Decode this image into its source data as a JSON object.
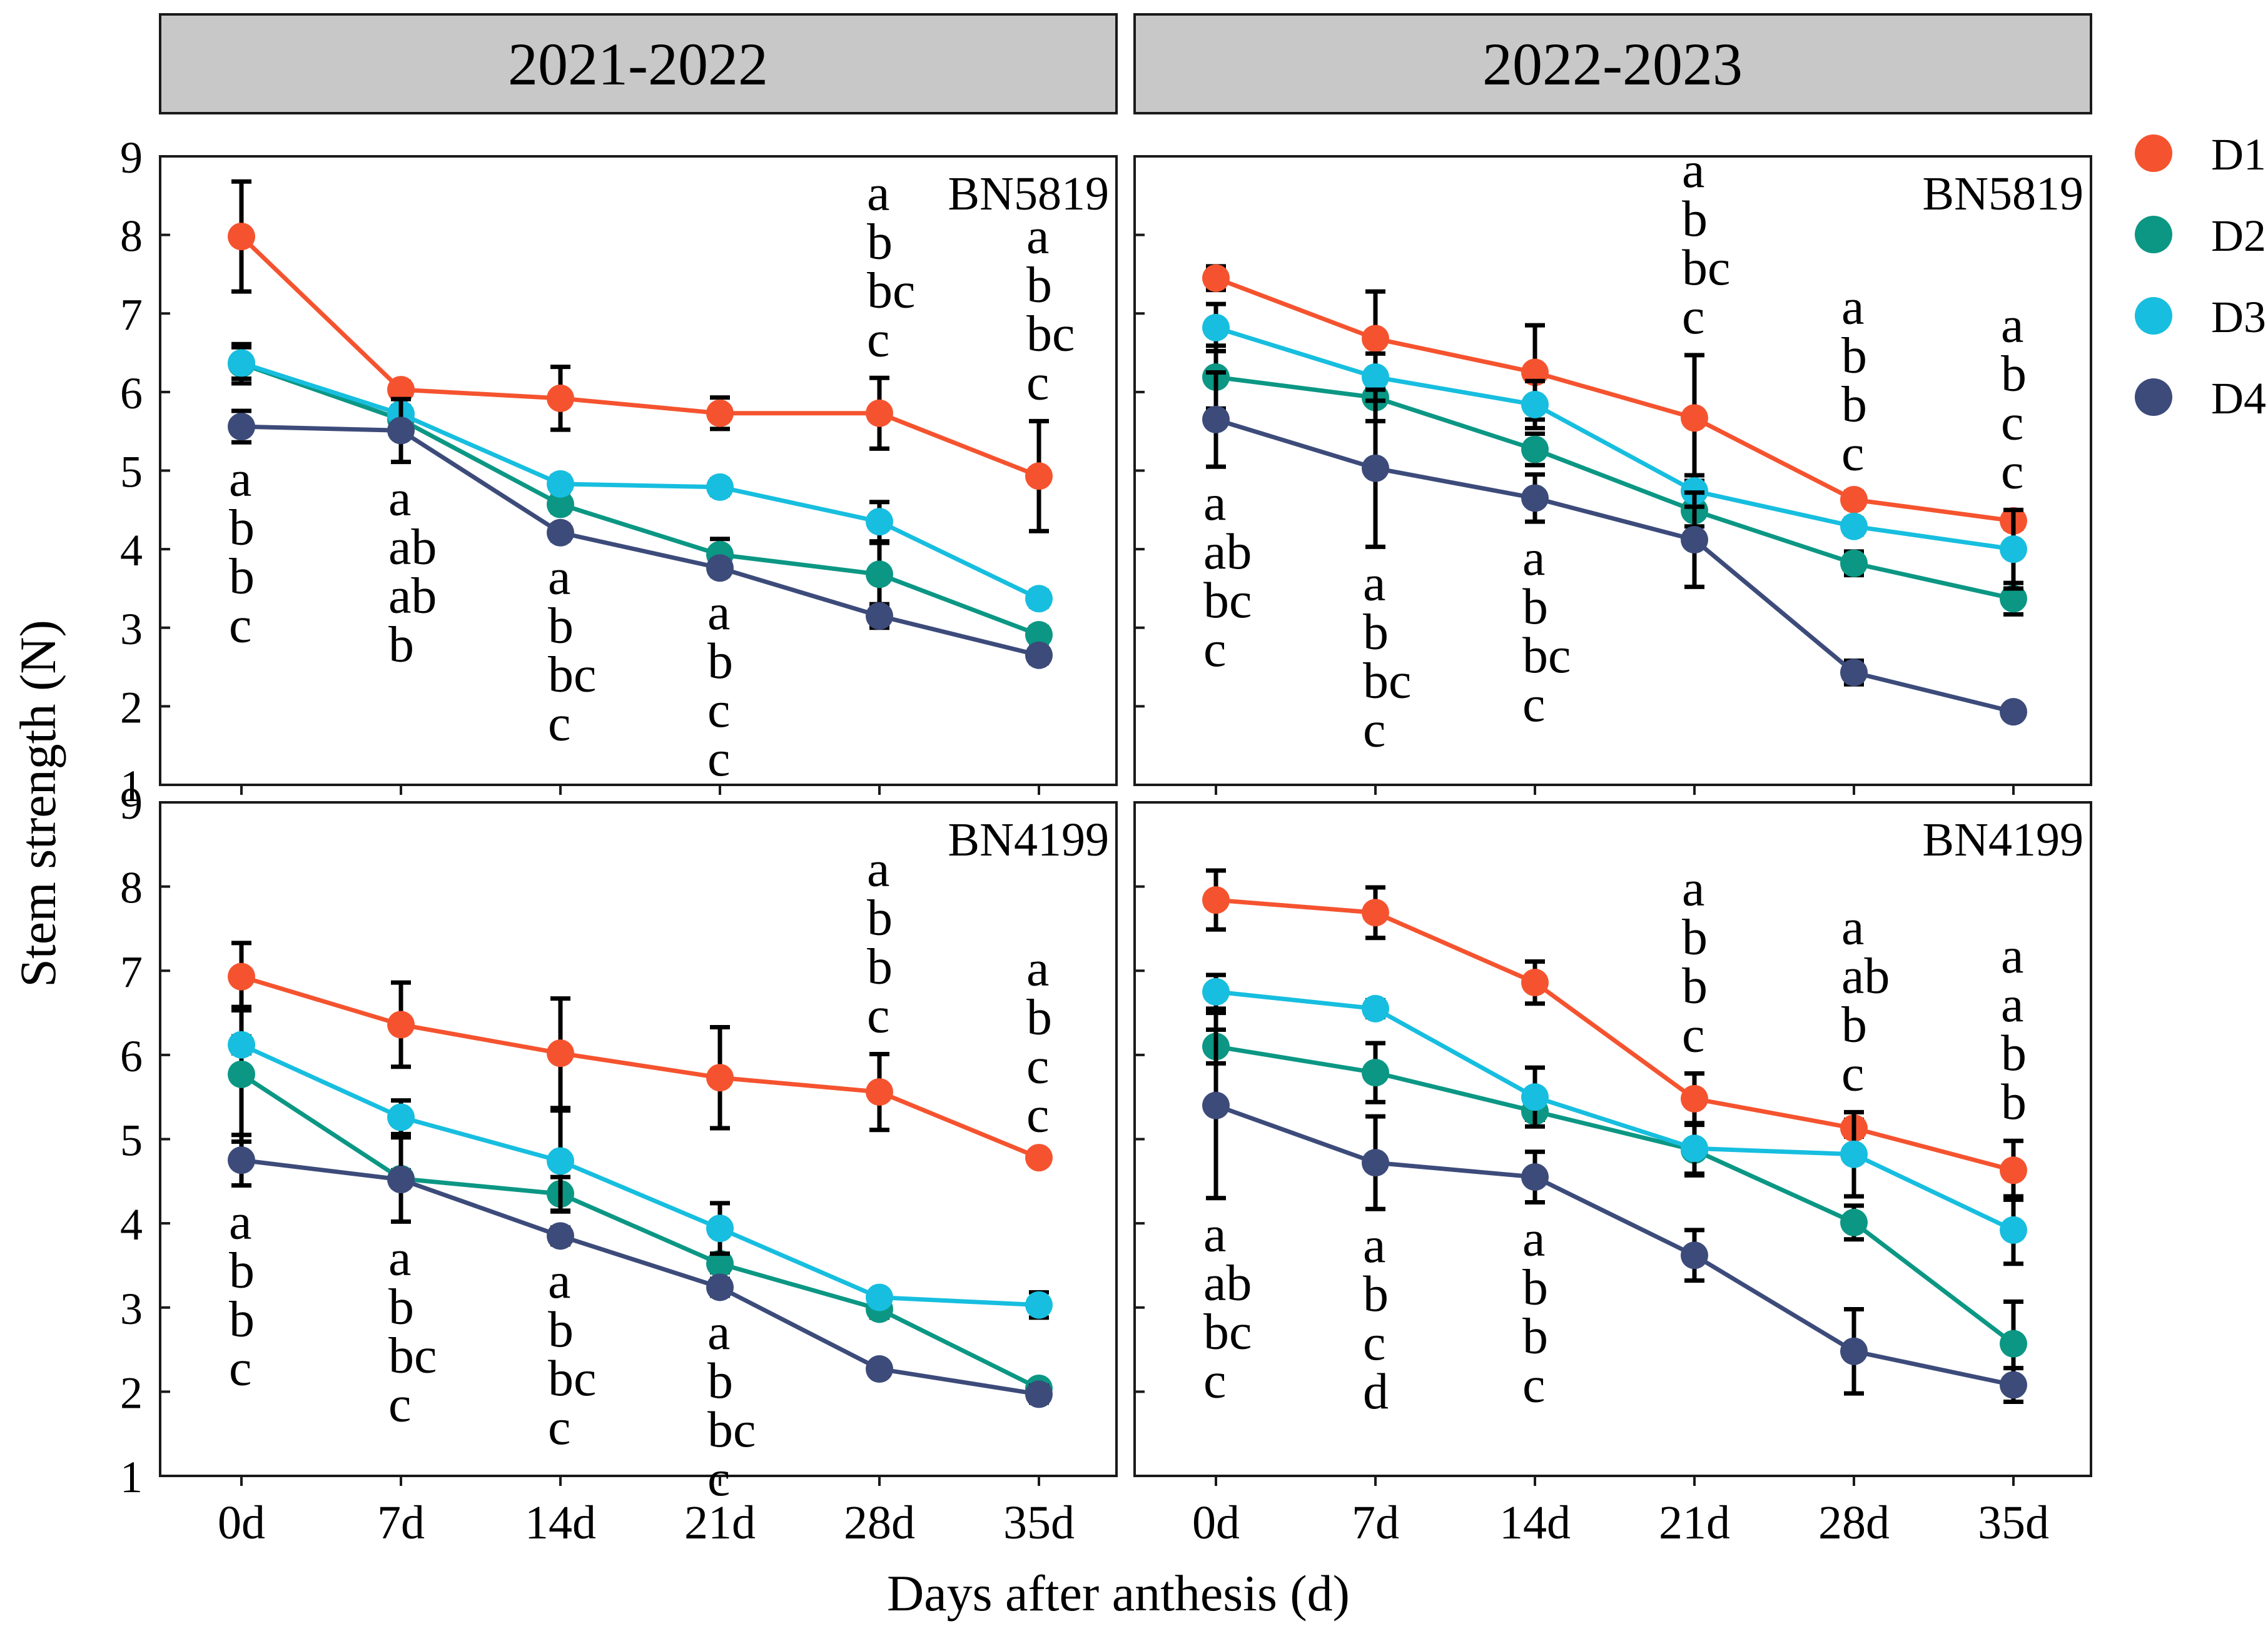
{
  "colors": {
    "D1": "#F5532F",
    "D2": "#0B9784",
    "D3": "#17BEDF",
    "D4": "#3C4B7A",
    "strip": "#C8C8C8",
    "frame": "#1a1a1a"
  },
  "legend": [
    {
      "key": "D1",
      "label": "D1"
    },
    {
      "key": "D2",
      "label": "D2"
    },
    {
      "key": "D3",
      "label": "D3"
    },
    {
      "key": "D4",
      "label": "D4"
    }
  ],
  "axes": {
    "xlabel": "Days after anthesis (d)",
    "ylabel": "Stem strength (N)",
    "yticks": [
      "1",
      "2",
      "3",
      "4",
      "5",
      "6",
      "7",
      "8",
      "9"
    ],
    "xticks": [
      "0d",
      "7d",
      "14d",
      "21d",
      "28d",
      "35d"
    ]
  },
  "chart_data": {
    "type": "line",
    "title": "",
    "xlabel": "Days after anthesis (d)",
    "ylabel": "Stem strength (N)",
    "ylim": [
      1,
      9
    ],
    "categories": [
      "0d",
      "7d",
      "14d",
      "21d",
      "28d",
      "35d"
    ],
    "seasons": [
      "2021-2022",
      "2022-2023"
    ],
    "panels": [
      {
        "season": "2021-2022",
        "variety": "BN5819",
        "series": [
          {
            "name": "D1",
            "values": [
              7.98,
              6.03,
              5.92,
              5.73,
              5.73,
              4.93
            ],
            "err": [
              0.7,
              0.1,
              0.4,
              0.2,
              0.45,
              0.7
            ]
          },
          {
            "name": "D2",
            "values": [
              6.36,
              5.65,
              4.57,
              3.93,
              3.68,
              2.91
            ],
            "err": [
              0.25,
              0.1,
              0.1,
              0.2,
              0.4,
              0.1
            ]
          },
          {
            "name": "D3",
            "values": [
              6.37,
              5.72,
              4.83,
              4.79,
              4.35,
              3.37
            ],
            "err": [
              0.2,
              0.1,
              0.1,
              0.1,
              0.25,
              0.1
            ]
          },
          {
            "name": "D4",
            "values": [
              5.56,
              5.51,
              4.21,
              3.76,
              3.15,
              2.65
            ],
            "err": [
              0.2,
              0.4,
              0.1,
              0.1,
              0.15,
              0.1
            ]
          }
        ],
        "letters": [
          {
            "x": 0,
            "pos": "below",
            "items": [
              "a",
              "b",
              "b",
              "c"
            ]
          },
          {
            "x": 1,
            "pos": "below",
            "items": [
              "a",
              "ab",
              "ab",
              "b"
            ]
          },
          {
            "x": 2,
            "pos": "below",
            "items": [
              "a",
              "b",
              "bc",
              "c"
            ]
          },
          {
            "x": 3,
            "pos": "below",
            "items": [
              "a",
              "b",
              "c",
              "c"
            ]
          },
          {
            "x": 4,
            "pos": "above",
            "items": [
              "a",
              "b",
              "bc",
              "c"
            ]
          },
          {
            "x": 5,
            "pos": "above",
            "items": [
              "a",
              "b",
              "bc",
              "c"
            ]
          }
        ]
      },
      {
        "season": "2022-2023",
        "variety": "BN5819",
        "series": [
          {
            "name": "D1",
            "values": [
              7.45,
              6.68,
              6.25,
              5.67,
              4.63,
              4.36
            ],
            "err": [
              0.15,
              0.6,
              0.6,
              0.8,
              0.1,
              0.1
            ]
          },
          {
            "name": "D2",
            "values": [
              6.19,
              5.93,
              5.27,
              4.49,
              3.82,
              3.37
            ],
            "err": [
              0.4,
              0.3,
              0.2,
              0.2,
              0.15,
              0.2
            ]
          },
          {
            "name": "D3",
            "values": [
              6.82,
              6.19,
              5.84,
              4.74,
              4.29,
              4.0
            ],
            "err": [
              0.3,
              0.3,
              0.3,
              0.2,
              0.1,
              0.5
            ]
          },
          {
            "name": "D4",
            "values": [
              5.65,
              5.03,
              4.65,
              4.12,
              2.43,
              1.93
            ],
            "err": [
              0.6,
              1.0,
              0.3,
              0.6,
              0.15,
              0.05
            ]
          }
        ],
        "letters": [
          {
            "x": 0,
            "pos": "below",
            "items": [
              "a",
              "ab",
              "bc",
              "c"
            ]
          },
          {
            "x": 1,
            "pos": "below",
            "items": [
              "a",
              "b",
              "bc",
              "c"
            ]
          },
          {
            "x": 2,
            "pos": "below",
            "items": [
              "a",
              "b",
              "bc",
              "c"
            ]
          },
          {
            "x": 3,
            "pos": "above",
            "items": [
              "a",
              "b",
              "bc",
              "c"
            ]
          },
          {
            "x": 4,
            "pos": "above",
            "items": [
              "a",
              "b",
              "b",
              "c"
            ]
          },
          {
            "x": 5,
            "pos": "above",
            "items": [
              "a",
              "b",
              "c",
              "c"
            ]
          }
        ]
      },
      {
        "season": "2021-2022",
        "variety": "BN4199",
        "series": [
          {
            "name": "D1",
            "values": [
              6.93,
              6.36,
              6.02,
              5.73,
              5.56,
              4.78
            ],
            "err": [
              0.4,
              0.5,
              0.65,
              0.6,
              0.45,
              0.05
            ]
          },
          {
            "name": "D2",
            "values": [
              5.77,
              4.53,
              4.35,
              3.52,
              2.98,
              2.04
            ],
            "err": [
              0.8,
              0.1,
              0.2,
              0.1,
              0.1,
              0.05
            ]
          },
          {
            "name": "D3",
            "values": [
              6.12,
              5.26,
              4.74,
              3.94,
              3.12,
              3.03
            ],
            "err": [
              0.1,
              0.2,
              0.6,
              0.3,
              0.05,
              0.15
            ]
          },
          {
            "name": "D4",
            "values": [
              4.75,
              4.52,
              3.85,
              3.24,
              2.27,
              1.97
            ],
            "err": [
              0.3,
              0.5,
              0.1,
              0.1,
              0.05,
              0.1
            ]
          }
        ],
        "letters": [
          {
            "x": 0,
            "pos": "below",
            "items": [
              "a",
              "b",
              "b",
              "c"
            ]
          },
          {
            "x": 1,
            "pos": "below",
            "items": [
              "a",
              "b",
              "bc",
              "c"
            ]
          },
          {
            "x": 2,
            "pos": "below",
            "items": [
              "a",
              "b",
              "bc",
              "c"
            ]
          },
          {
            "x": 3,
            "pos": "below",
            "items": [
              "a",
              "b",
              "bc",
              "c"
            ]
          },
          {
            "x": 4,
            "pos": "above",
            "items": [
              "a",
              "b",
              "b",
              "c"
            ]
          },
          {
            "x": 5,
            "pos": "above",
            "items": [
              "a",
              "b",
              "c",
              "c"
            ]
          }
        ]
      },
      {
        "season": "2022-2023",
        "variety": "BN4199",
        "series": [
          {
            "name": "D1",
            "values": [
              7.84,
              7.69,
              6.86,
              5.48,
              5.13,
              4.63
            ],
            "err": [
              0.35,
              0.3,
              0.25,
              0.3,
              0.1,
              0.35
            ]
          },
          {
            "name": "D2",
            "values": [
              6.1,
              5.79,
              5.33,
              4.87,
              4.01,
              2.57
            ],
            "err": [
              0.2,
              0.35,
              0.1,
              0.3,
              0.2,
              0.5
            ]
          },
          {
            "name": "D3",
            "values": [
              6.75,
              6.55,
              5.5,
              4.89,
              4.82,
              3.92
            ],
            "err": [
              0.2,
              0.1,
              0.35,
              0.3,
              0.5,
              0.4
            ]
          },
          {
            "name": "D4",
            "values": [
              5.4,
              4.72,
              4.55,
              3.62,
              2.48,
              2.08
            ],
            "err": [
              1.1,
              0.55,
              0.3,
              0.3,
              0.5,
              0.2
            ]
          }
        ],
        "letters": [
          {
            "x": 0,
            "pos": "below",
            "items": [
              "a",
              "ab",
              "bc",
              "c"
            ]
          },
          {
            "x": 1,
            "pos": "below",
            "items": [
              "a",
              "b",
              "c",
              "d"
            ]
          },
          {
            "x": 2,
            "pos": "below",
            "items": [
              "a",
              "b",
              "b",
              "c"
            ]
          },
          {
            "x": 3,
            "pos": "above",
            "items": [
              "a",
              "b",
              "b",
              "c"
            ]
          },
          {
            "x": 4,
            "pos": "above",
            "items": [
              "a",
              "ab",
              "b",
              "c"
            ]
          },
          {
            "x": 5,
            "pos": "above",
            "items": [
              "a",
              "a",
              "b",
              "b"
            ]
          }
        ]
      }
    ]
  }
}
